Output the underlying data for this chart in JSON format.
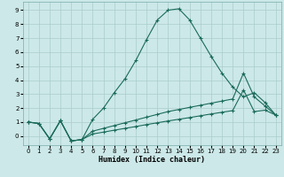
{
  "bg_color": "#cce8e8",
  "grid_color": "#aacccc",
  "line_color": "#1a6b5a",
  "xlim": [
    -0.5,
    23.5
  ],
  "ylim": [
    -0.65,
    9.6
  ],
  "xticks": [
    0,
    1,
    2,
    3,
    4,
    5,
    6,
    7,
    8,
    9,
    10,
    11,
    12,
    13,
    14,
    15,
    16,
    17,
    18,
    19,
    20,
    21,
    22,
    23
  ],
  "yticks": [
    0,
    1,
    2,
    3,
    4,
    5,
    6,
    7,
    8,
    9
  ],
  "xlabel": "Humidex (Indice chaleur)",
  "line1_x": [
    0,
    1,
    2,
    3,
    4,
    5,
    6,
    7,
    8,
    9,
    10,
    11,
    12,
    13,
    14,
    15,
    16,
    17,
    18,
    19,
    20,
    21,
    22,
    23
  ],
  "line1_y": [
    1.0,
    0.9,
    -0.2,
    1.1,
    -0.35,
    -0.25,
    1.2,
    2.0,
    3.1,
    4.1,
    5.4,
    6.9,
    8.3,
    9.0,
    9.1,
    8.3,
    7.0,
    5.7,
    4.5,
    3.5,
    2.8,
    3.1,
    2.4,
    1.5
  ],
  "line2_x": [
    0,
    1,
    2,
    3,
    4,
    5,
    6,
    7,
    8,
    9,
    10,
    11,
    12,
    13,
    14,
    15,
    16,
    17,
    18,
    19,
    20,
    21,
    22,
    23
  ],
  "line2_y": [
    1.0,
    0.9,
    -0.2,
    1.1,
    -0.35,
    -0.25,
    0.35,
    0.55,
    0.75,
    0.95,
    1.15,
    1.35,
    1.55,
    1.75,
    1.9,
    2.05,
    2.2,
    2.35,
    2.5,
    2.65,
    4.5,
    2.8,
    2.15,
    1.5
  ],
  "line3_x": [
    0,
    1,
    2,
    3,
    4,
    5,
    6,
    7,
    8,
    9,
    10,
    11,
    12,
    13,
    14,
    15,
    16,
    17,
    18,
    19,
    20,
    21,
    22,
    23
  ],
  "line3_y": [
    1.0,
    0.9,
    -0.2,
    1.1,
    -0.35,
    -0.25,
    0.15,
    0.28,
    0.42,
    0.55,
    0.68,
    0.82,
    0.95,
    1.08,
    1.2,
    1.32,
    1.45,
    1.58,
    1.7,
    1.82,
    3.3,
    1.75,
    1.85,
    1.5
  ]
}
